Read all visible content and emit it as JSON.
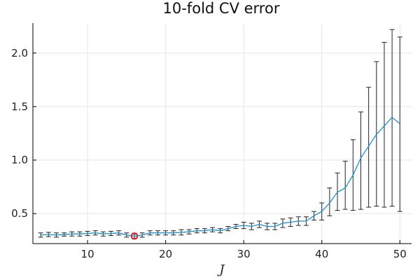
{
  "chart_data": {
    "type": "line",
    "title": "10-fold CV error",
    "xlabel": "J",
    "ylabel": "",
    "xlim": [
      3,
      51.5
    ],
    "ylim": [
      0.22,
      2.28
    ],
    "x_ticks": [
      10,
      20,
      30,
      40,
      50
    ],
    "y_ticks": [
      0.5,
      1.0,
      1.5,
      2.0
    ],
    "x_tick_labels": [
      "10",
      "20",
      "30",
      "40",
      "50"
    ],
    "y_tick_labels": [
      "0.5",
      "1.0",
      "1.5",
      "2.0"
    ],
    "grid": true,
    "legend": "none",
    "line_color": "#1a8fce",
    "errorbar_color": "#222222",
    "highlight_color": "#e0202a",
    "series": [
      {
        "x": [
          4,
          5,
          6,
          7,
          8,
          9,
          10,
          11,
          12,
          13,
          14,
          15,
          16,
          17,
          18,
          19,
          20,
          21,
          22,
          23,
          24,
          25,
          26,
          27,
          28,
          29,
          30,
          31,
          32,
          33,
          34,
          35,
          36,
          37,
          38,
          39,
          40,
          41,
          42,
          43,
          44,
          45,
          46,
          47,
          48,
          49,
          50
        ],
        "y": [
          0.3,
          0.305,
          0.3,
          0.305,
          0.31,
          0.31,
          0.315,
          0.32,
          0.31,
          0.315,
          0.32,
          0.3,
          0.29,
          0.3,
          0.32,
          0.32,
          0.32,
          0.32,
          0.325,
          0.33,
          0.34,
          0.34,
          0.35,
          0.34,
          0.36,
          0.38,
          0.39,
          0.38,
          0.4,
          0.38,
          0.38,
          0.41,
          0.42,
          0.43,
          0.43,
          0.48,
          0.52,
          0.6,
          0.7,
          0.74,
          0.86,
          1.02,
          1.13,
          1.24,
          1.32,
          1.4,
          1.34
        ],
        "err_lo": [
          0.28,
          0.285,
          0.28,
          0.29,
          0.29,
          0.29,
          0.295,
          0.3,
          0.29,
          0.295,
          0.3,
          0.28,
          0.27,
          0.28,
          0.3,
          0.3,
          0.3,
          0.3,
          0.3,
          0.31,
          0.32,
          0.32,
          0.33,
          0.32,
          0.34,
          0.36,
          0.36,
          0.35,
          0.37,
          0.35,
          0.35,
          0.37,
          0.38,
          0.39,
          0.39,
          0.44,
          0.44,
          0.48,
          0.53,
          0.54,
          0.53,
          0.54,
          0.56,
          0.57,
          0.56,
          0.57,
          0.52
        ],
        "err_hi": [
          0.32,
          0.325,
          0.32,
          0.32,
          0.33,
          0.33,
          0.335,
          0.34,
          0.33,
          0.335,
          0.34,
          0.32,
          0.31,
          0.32,
          0.34,
          0.34,
          0.34,
          0.34,
          0.35,
          0.35,
          0.36,
          0.36,
          0.37,
          0.36,
          0.38,
          0.4,
          0.42,
          0.41,
          0.43,
          0.41,
          0.41,
          0.45,
          0.46,
          0.47,
          0.47,
          0.52,
          0.6,
          0.74,
          0.88,
          0.99,
          1.19,
          1.45,
          1.68,
          1.92,
          2.1,
          2.22,
          2.15
        ]
      }
    ],
    "highlight_point": {
      "x": 16,
      "y": 0.29
    }
  }
}
